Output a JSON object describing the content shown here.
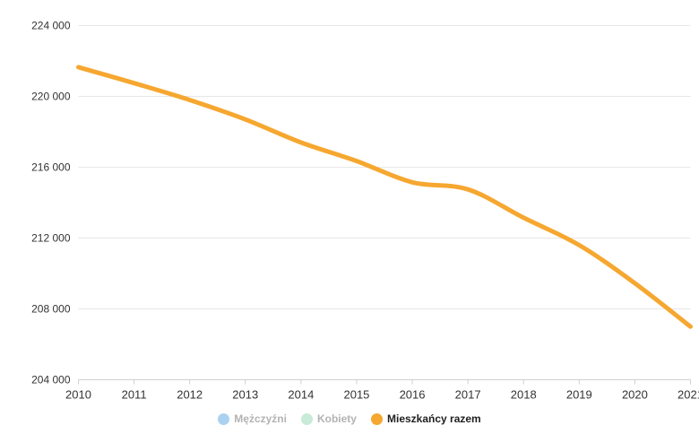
{
  "chart_data": {
    "type": "line",
    "title": "",
    "x": [
      2010,
      2011,
      2012,
      2013,
      2014,
      2015,
      2016,
      2017,
      2018,
      2019,
      2020,
      2021
    ],
    "x_labels": [
      "2010",
      "2011",
      "2012",
      "2013",
      "2014",
      "2015",
      "2016",
      "2017",
      "2018",
      "2019",
      "2020",
      "2021"
    ],
    "ylim": [
      204000,
      224000
    ],
    "yticks": [
      {
        "value": 224000,
        "label": "224 000"
      },
      {
        "value": 220000,
        "label": "220 000"
      },
      {
        "value": 216000,
        "label": "216 000"
      },
      {
        "value": 212000,
        "label": "212 000"
      },
      {
        "value": 208000,
        "label": "208 000"
      },
      {
        "value": 204000,
        "label": "204 000"
      }
    ],
    "grid": "horizontal",
    "legend_position": "bottom",
    "series": [
      {
        "name": "Mężczyźni",
        "color": "#ABD1F0",
        "visible": false
      },
      {
        "name": "Kobiety",
        "color": "#C8EAD8",
        "visible": false
      },
      {
        "name": "Mieszkańcy razem",
        "color": "#F6A730",
        "visible": true,
        "values": [
          221650,
          220750,
          219800,
          218700,
          217400,
          216350,
          215150,
          214750,
          213150,
          211600,
          209450,
          207000
        ]
      }
    ],
    "colors": {
      "gridline": "#e7e7e7",
      "axis_line": "#cfcfcf",
      "axis_label": "#333333",
      "legend_active_text": "#1f1f1f",
      "legend_disabled_text": "#b3b3b3"
    }
  }
}
